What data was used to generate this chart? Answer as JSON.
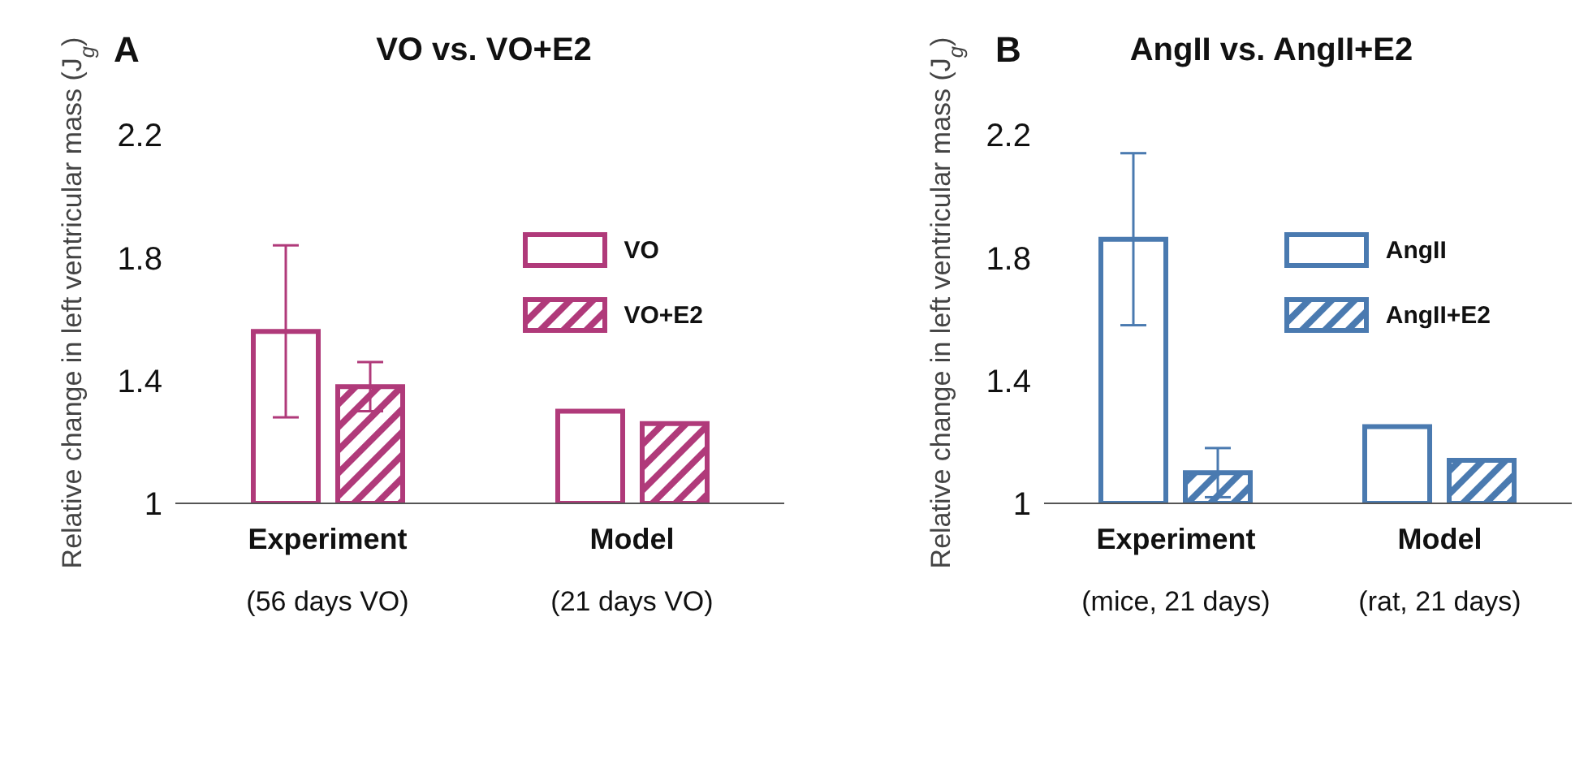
{
  "chart_data": [
    {
      "type": "bar",
      "title": "VO vs. VO+E2",
      "annotations": [
        "A"
      ],
      "ylabel": "Relative change in left ventricular mass (J$_{g}$)",
      "categories": [
        "Experiment\n(56 days VO)",
        "Model\n(21 days VO)"
      ],
      "ylim": [
        1,
        2.2
      ],
      "yticks": [
        1,
        1.4,
        1.8,
        2.2
      ],
      "grid": false,
      "legend": "top right",
      "series": [
        {
          "name": "VO",
          "color": "#b03a7a",
          "values": [
            1.56,
            1.3
          ],
          "errors": [
            [
              1.28,
              1.84
            ],
            null
          ]
        },
        {
          "name": "VO+E2",
          "color": "#b03a7a",
          "values": [
            1.38,
            1.26
          ],
          "errors": [
            [
              1.3,
              1.46
            ],
            null
          ]
        }
      ]
    },
    {
      "type": "bar",
      "title": "AngII vs. AngII+E2",
      "annotations": [
        "B"
      ],
      "ylabel": "Relative change in left ventricular mass (J$_{g}$)",
      "categories": [
        "Experiment\n(mice, 21 days)",
        "Model\n(rat, 21 days)"
      ],
      "ylim": [
        1,
        2.2
      ],
      "yticks": [
        1,
        1.4,
        1.8,
        2.2
      ],
      "grid": false,
      "legend": "top right",
      "series": [
        {
          "name": "AngII",
          "color": "#4a7ab0",
          "values": [
            1.86,
            1.25
          ],
          "errors": [
            [
              1.58,
              2.14
            ],
            null
          ]
        },
        {
          "name": "AngII+E2",
          "color": "#4a7ab0",
          "values": [
            1.1,
            1.14
          ],
          "errors": [
            [
              1.02,
              1.18
            ],
            null
          ]
        }
      ]
    }
  ]
}
